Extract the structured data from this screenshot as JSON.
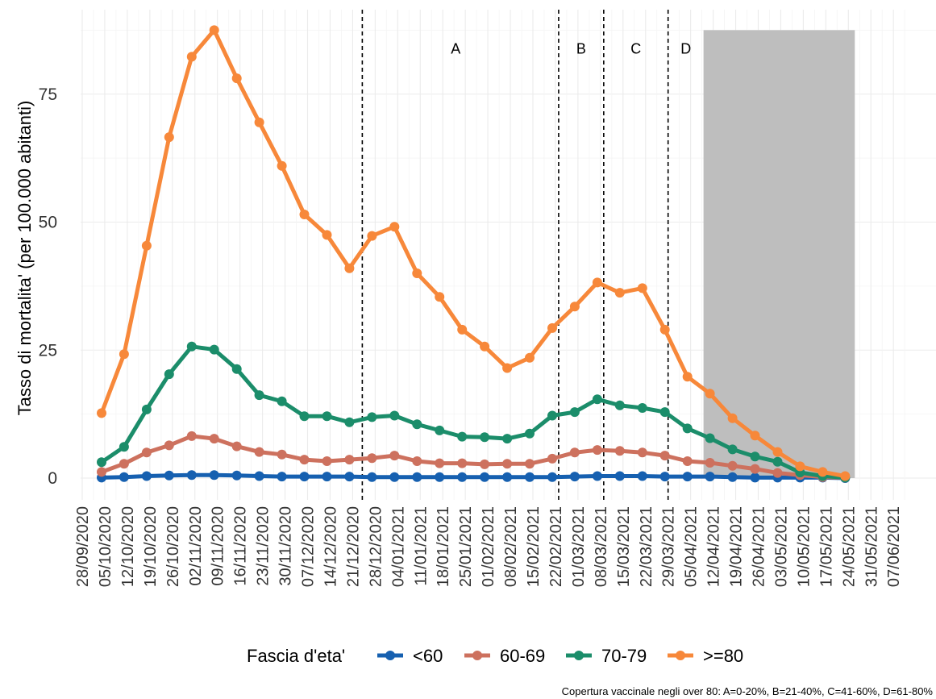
{
  "chart_data": {
    "type": "line",
    "title": "",
    "xlabel": "",
    "ylabel": "Tasso di mortalita' (per 100.000 abitanti)",
    "ylim": [
      -4,
      89
    ],
    "yticks": [
      0,
      25,
      50,
      75
    ],
    "grid": true,
    "legend_position": "bottom",
    "legend_title": "Fascia d'eta'",
    "caption": "Copertura vaccinale negli over 80: A=0-20%, B=21-40%, C=41-60%, D=61-80%",
    "x_ticks": [
      "28/09/2020",
      "05/10/2020",
      "12/10/2020",
      "19/10/2020",
      "26/10/2020",
      "02/11/2020",
      "09/11/2020",
      "16/11/2020",
      "23/11/2020",
      "30/11/2020",
      "07/12/2020",
      "14/12/2020",
      "21/12/2020",
      "28/12/2020",
      "04/01/2021",
      "11/01/2021",
      "18/01/2021",
      "25/01/2021",
      "01/02/2021",
      "08/02/2021",
      "15/02/2021",
      "22/02/2021",
      "01/03/2021",
      "08/03/2021",
      "15/03/2021",
      "22/03/2021",
      "29/03/2021",
      "05/04/2021",
      "12/04/2021",
      "19/04/2021",
      "26/04/2021",
      "03/05/2021",
      "10/05/2021",
      "17/05/2021",
      "24/05/2021",
      "31/05/2021",
      "07/06/2021"
    ],
    "x": [
      "04/10/2020",
      "11/10/2020",
      "18/10/2020",
      "25/10/2020",
      "01/11/2020",
      "08/11/2020",
      "15/11/2020",
      "22/11/2020",
      "29/11/2020",
      "06/12/2020",
      "13/12/2020",
      "20/12/2020",
      "27/12/2020",
      "03/01/2021",
      "10/01/2021",
      "17/01/2021",
      "24/01/2021",
      "31/01/2021",
      "07/02/2021",
      "14/02/2021",
      "21/02/2021",
      "28/02/2021",
      "07/03/2021",
      "14/03/2021",
      "21/03/2021",
      "28/03/2021",
      "04/04/2021",
      "11/04/2021",
      "18/04/2021",
      "25/04/2021",
      "02/05/2021",
      "09/05/2021",
      "16/05/2021",
      "23/05/2021"
    ],
    "series": [
      {
        "name": "<60",
        "color": "#1660B0",
        "values": [
          0.1,
          0.2,
          0.4,
          0.5,
          0.6,
          0.6,
          0.5,
          0.4,
          0.3,
          0.3,
          0.3,
          0.3,
          0.2,
          0.2,
          0.2,
          0.2,
          0.2,
          0.2,
          0.2,
          0.2,
          0.2,
          0.3,
          0.4,
          0.4,
          0.4,
          0.3,
          0.3,
          0.3,
          0.2,
          0.1,
          0.1,
          0.1,
          0.1,
          0.0
        ]
      },
      {
        "name": "60-69",
        "color": "#CD715E",
        "values": [
          1.2,
          2.8,
          5.0,
          6.4,
          8.2,
          7.7,
          6.2,
          5.1,
          4.6,
          3.6,
          3.3,
          3.6,
          3.9,
          4.4,
          3.3,
          2.9,
          2.9,
          2.7,
          2.8,
          2.8,
          3.8,
          5.0,
          5.5,
          5.3,
          5.0,
          4.4,
          3.3,
          3.0,
          2.4,
          1.8,
          1.0,
          0.6,
          0.2,
          0.1
        ]
      },
      {
        "name": "70-79",
        "color": "#1B8D6A",
        "values": [
          3.1,
          6.1,
          13.4,
          20.3,
          25.7,
          25.1,
          21.3,
          16.2,
          15.0,
          12.1,
          12.1,
          10.9,
          11.9,
          12.2,
          10.5,
          9.3,
          8.1,
          8.0,
          7.7,
          8.7,
          12.2,
          12.9,
          15.4,
          14.2,
          13.7,
          12.9,
          9.7,
          7.8,
          5.6,
          4.2,
          3.2,
          1.1,
          0.4,
          0.1
        ]
      },
      {
        "name": ">=80",
        "color": "#F7883A",
        "values": [
          12.7,
          24.2,
          45.4,
          66.6,
          82.3,
          87.5,
          78.1,
          69.5,
          61.0,
          51.5,
          47.5,
          41.0,
          47.3,
          49.1,
          40.0,
          35.4,
          29.0,
          25.7,
          21.5,
          23.5,
          29.3,
          33.5,
          38.2,
          36.2,
          37.1,
          29.0,
          19.8,
          16.5,
          11.7,
          8.3,
          5.1,
          2.3,
          1.2,
          0.4
        ]
      }
    ],
    "annotations": [
      {
        "label": "A",
        "x_start": "21/12/2020",
        "x_end": "23/02/2021",
        "y": 84
      },
      {
        "label": "B",
        "x_start": "23/02/2021",
        "x_end": "09/03/2021",
        "y": 84
      },
      {
        "label": "C",
        "x_start": "09/03/2021",
        "x_end": "29/03/2021",
        "y": 84
      },
      {
        "label": "D",
        "x_start": "29/03/2021",
        "x_end": "09/04/2021",
        "y": 84
      }
    ],
    "vlines_dates": [
      "24/12/2020",
      "23/02/2021",
      "09/03/2021",
      "29/03/2021"
    ],
    "shaded_region": {
      "x_start": "09/04/2021",
      "x_end": "26/05/2021",
      "y_top": 87.5,
      "color": "#BEBEBE"
    }
  }
}
